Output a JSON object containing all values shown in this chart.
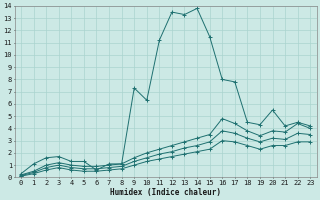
{
  "xlabel": "Humidex (Indice chaleur)",
  "xlim": [
    -0.5,
    23.5
  ],
  "ylim": [
    0,
    14
  ],
  "xticks": [
    0,
    1,
    2,
    3,
    4,
    5,
    6,
    7,
    8,
    9,
    10,
    11,
    12,
    13,
    14,
    15,
    16,
    17,
    18,
    19,
    20,
    21,
    22,
    23
  ],
  "yticks": [
    0,
    1,
    2,
    3,
    4,
    5,
    6,
    7,
    8,
    9,
    10,
    11,
    12,
    13,
    14
  ],
  "background_color": "#cce9e5",
  "grid_color": "#aad4cf",
  "line_color": "#1e7070",
  "lines": [
    {
      "x": [
        0,
        1,
        2,
        3,
        4,
        5,
        6,
        7,
        8,
        9,
        10,
        11,
        12,
        13,
        14,
        15,
        16,
        17,
        18,
        19,
        20,
        21,
        22,
        23
      ],
      "y": [
        0.3,
        1.1,
        1.6,
        1.7,
        1.3,
        1.3,
        0.6,
        1.1,
        1.1,
        7.3,
        6.3,
        11.2,
        13.5,
        13.3,
        13.8,
        11.5,
        8.0,
        7.8,
        4.5,
        4.3,
        5.5,
        4.2,
        4.5,
        4.2
      ]
    },
    {
      "x": [
        0,
        1,
        2,
        3,
        4,
        5,
        6,
        7,
        8,
        9,
        10,
        11,
        12,
        13,
        14,
        15,
        16,
        17,
        18,
        19,
        20,
        21,
        22,
        23
      ],
      "y": [
        0.2,
        0.5,
        1.0,
        1.2,
        1.0,
        0.9,
        0.9,
        1.0,
        1.1,
        1.6,
        2.0,
        2.3,
        2.6,
        2.9,
        3.2,
        3.5,
        4.8,
        4.4,
        3.8,
        3.4,
        3.8,
        3.7,
        4.4,
        4.0
      ]
    },
    {
      "x": [
        0,
        1,
        2,
        3,
        4,
        5,
        6,
        7,
        8,
        9,
        10,
        11,
        12,
        13,
        14,
        15,
        16,
        17,
        18,
        19,
        20,
        21,
        22,
        23
      ],
      "y": [
        0.15,
        0.4,
        0.8,
        1.0,
        0.8,
        0.7,
        0.7,
        0.8,
        0.9,
        1.3,
        1.6,
        1.9,
        2.1,
        2.4,
        2.6,
        2.9,
        3.8,
        3.6,
        3.2,
        2.9,
        3.2,
        3.1,
        3.6,
        3.5
      ]
    },
    {
      "x": [
        0,
        1,
        2,
        3,
        4,
        5,
        6,
        7,
        8,
        9,
        10,
        11,
        12,
        13,
        14,
        15,
        16,
        17,
        18,
        19,
        20,
        21,
        22,
        23
      ],
      "y": [
        0.1,
        0.3,
        0.6,
        0.8,
        0.6,
        0.5,
        0.5,
        0.6,
        0.7,
        1.0,
        1.3,
        1.5,
        1.7,
        1.9,
        2.1,
        2.3,
        3.0,
        2.9,
        2.6,
        2.3,
        2.6,
        2.6,
        2.9,
        2.9
      ]
    }
  ]
}
